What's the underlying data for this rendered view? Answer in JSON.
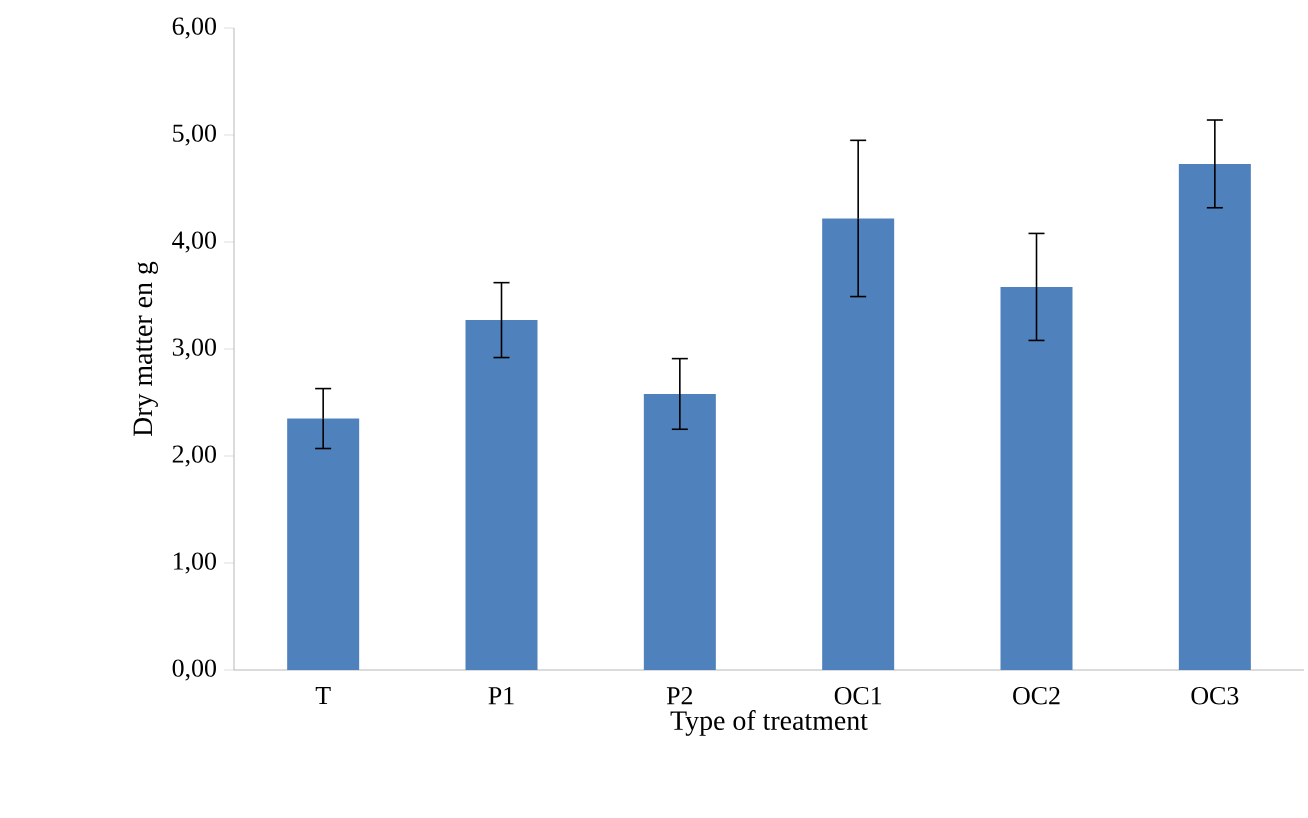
{
  "chart_data": {
    "type": "bar",
    "xlabel": "Type of treatment",
    "ylabel": "Dry matter en g",
    "categories": [
      "T",
      "P1",
      "P2",
      "OC1",
      "OC2",
      "OC3"
    ],
    "values": [
      2.35,
      3.27,
      2.58,
      4.22,
      3.58,
      4.73
    ],
    "errors": [
      0.28,
      0.35,
      0.33,
      0.73,
      0.5,
      0.41
    ],
    "color": "#4f81bd",
    "ylim": [
      0,
      6
    ],
    "yticks": [
      {
        "value": 0,
        "label": "0,00"
      },
      {
        "value": 1,
        "label": "1,00"
      },
      {
        "value": 2,
        "label": "2,00"
      },
      {
        "value": 3,
        "label": "3,00"
      },
      {
        "value": 4,
        "label": "4,00"
      },
      {
        "value": 5,
        "label": "5,00"
      },
      {
        "value": 6,
        "label": "6,00"
      }
    ]
  }
}
